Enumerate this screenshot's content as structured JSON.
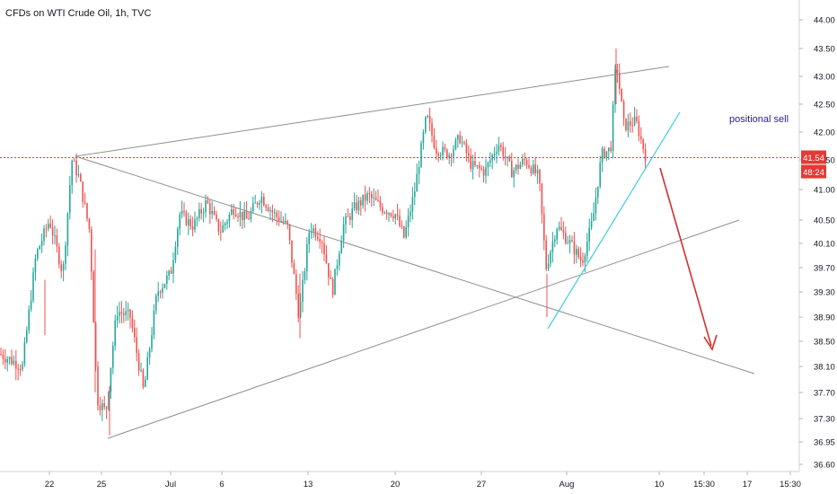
{
  "header": {
    "title": "CFDs on WTI Crude Oil, 1h, TVC"
  },
  "annotation": {
    "text": "positional sell"
  },
  "price_badge": {
    "price": "41.54",
    "timer": "48:24",
    "color": "#e53935"
  },
  "chart_data": {
    "type": "candlestick",
    "title": "CFDs on WTI Crude Oil, 1h, TVC",
    "y_ticks": [
      "44.00",
      "43.50",
      "43.00",
      "42.50",
      "42.00",
      "41.50",
      "41.00",
      "40.50",
      "40.10",
      "39.70",
      "39.30",
      "38.90",
      "38.50",
      "38.10",
      "37.70",
      "37.30",
      "36.95",
      "36.60"
    ],
    "x_ticks": [
      "22",
      "25",
      "Jul",
      "6",
      "13",
      "20",
      "27",
      "Aug",
      "10",
      "15:30",
      "17",
      "15:30"
    ],
    "current_price": 41.54,
    "colors": {
      "up": "#26a69a",
      "down": "#ef5350",
      "price_line": "#e53935",
      "trendline": "#8f8f8f",
      "support": "#4dd0e1",
      "arrow": "#d32f2f"
    },
    "price_path": [
      [
        0,
        38.3
      ],
      [
        25,
        38.1
      ],
      [
        40,
        39.9
      ],
      [
        55,
        40.5
      ],
      [
        70,
        39.6
      ],
      [
        80,
        41.5
      ],
      [
        88,
        41.2
      ],
      [
        100,
        40.3
      ],
      [
        108,
        37.6
      ],
      [
        118,
        37.4
      ],
      [
        130,
        39.0
      ],
      [
        145,
        38.9
      ],
      [
        160,
        37.7
      ],
      [
        175,
        39.3
      ],
      [
        190,
        39.6
      ],
      [
        200,
        40.6
      ],
      [
        215,
        40.4
      ],
      [
        230,
        40.8
      ],
      [
        245,
        40.3
      ],
      [
        260,
        40.7
      ],
      [
        275,
        40.5
      ],
      [
        290,
        40.9
      ],
      [
        305,
        40.6
      ],
      [
        320,
        40.4
      ],
      [
        333,
        38.9
      ],
      [
        345,
        40.4
      ],
      [
        358,
        40.2
      ],
      [
        370,
        39.3
      ],
      [
        382,
        40.4
      ],
      [
        395,
        40.7
      ],
      [
        410,
        40.9
      ],
      [
        425,
        40.7
      ],
      [
        440,
        40.6
      ],
      [
        450,
        40.2
      ],
      [
        462,
        41.0
      ],
      [
        475,
        42.3
      ],
      [
        485,
        41.7
      ],
      [
        500,
        41.6
      ],
      [
        512,
        41.9
      ],
      [
        525,
        41.4
      ],
      [
        540,
        41.3
      ],
      [
        555,
        41.8
      ],
      [
        570,
        41.3
      ],
      [
        585,
        41.5
      ],
      [
        600,
        41.2
      ],
      [
        608,
        39.7
      ],
      [
        620,
        40.4
      ],
      [
        635,
        40.1
      ],
      [
        648,
        39.8
      ],
      [
        660,
        40.5
      ],
      [
        670,
        41.6
      ],
      [
        680,
        41.7
      ],
      [
        686,
        43.3
      ],
      [
        695,
        42.1
      ],
      [
        708,
        42.2
      ],
      [
        720,
        41.5
      ]
    ]
  }
}
